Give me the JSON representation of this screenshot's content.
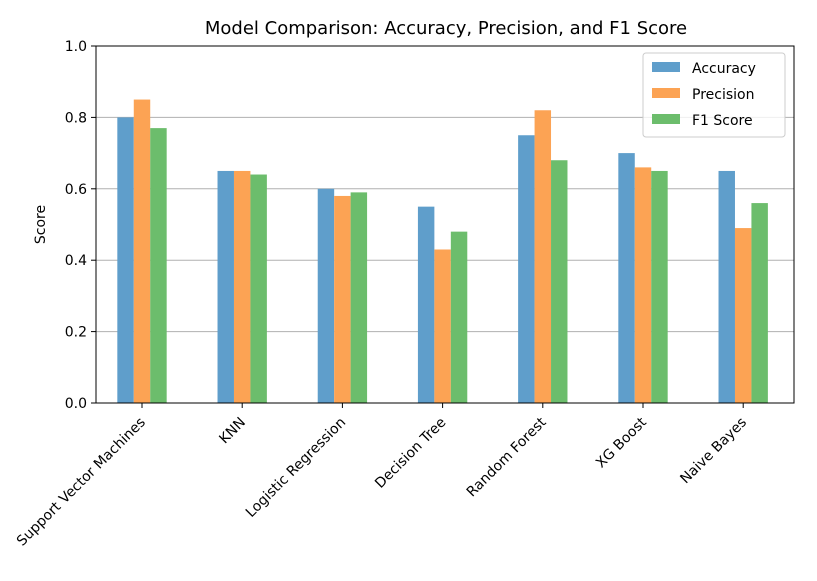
{
  "chart_data": {
    "type": "bar",
    "title": "Model Comparison: Accuracy, Precision, and F1 Score",
    "xlabel": "",
    "ylabel": "Score",
    "ylim": [
      0,
      1.0
    ],
    "yticks": [
      "0.0",
      "0.2",
      "0.4",
      "0.6",
      "0.8",
      "1.0"
    ],
    "grid": "horizontal",
    "legend_position": "top-right",
    "categories": [
      "Support Vector Machines",
      "KNN",
      "Logistic Regression",
      "Decision Tree",
      "Random Forest",
      "XG Boost",
      "Naive Bayes"
    ],
    "series": [
      {
        "name": "Accuracy",
        "color": "#5f9ecb",
        "values": [
          0.8,
          0.65,
          0.6,
          0.55,
          0.75,
          0.7,
          0.65
        ]
      },
      {
        "name": "Precision",
        "color": "#fca354",
        "values": [
          0.85,
          0.65,
          0.58,
          0.43,
          0.82,
          0.66,
          0.49
        ]
      },
      {
        "name": "F1 Score",
        "color": "#6cbd6c",
        "values": [
          0.77,
          0.64,
          0.59,
          0.48,
          0.68,
          0.65,
          0.56
        ]
      }
    ]
  }
}
